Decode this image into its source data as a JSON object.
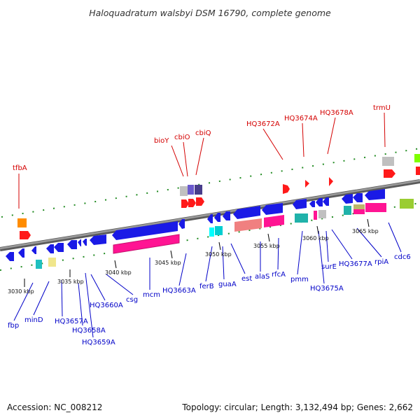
{
  "title": "Haloquadratum walsbyi DSM 16790, complete genome",
  "footer": {
    "accession": "Accession: NC_008212",
    "summary": "Topology: circular; Length: 3,132,494 bp; Genes: 2,662"
  },
  "colors": {
    "forward_label": "#d40000",
    "reverse_label": "#0000c8",
    "backbone": "#808080",
    "tick_green": "#228b22",
    "cds_blue": "#1a1ae6",
    "rrna_pink": "#ff1493",
    "trna_red": "#ff0000"
  },
  "ticks": [
    "3030 kbp",
    "3035 kbp",
    "3040 kbp",
    "3045 kbp",
    "3050 kbp",
    "3055 kbp",
    "3060 kbp",
    "3065 kbp"
  ],
  "forward_labels": [
    "tfbA",
    "bioY",
    "cbiO",
    "cbiQ",
    "HQ3672A",
    "HQ3674A",
    "HQ3678A",
    "trmU"
  ],
  "reverse_labels": [
    "fbp",
    "minD",
    "HQ3657A",
    "HQ3658A",
    "HQ3659A",
    "HQ3660A",
    "csg",
    "mcm",
    "HQ3663A",
    "ferB",
    "guaA",
    "est",
    "alaS",
    "rfcA",
    "pmm",
    "HQ3675A",
    "surE",
    "HQ3677A",
    "rpiA",
    "cdc6"
  ]
}
